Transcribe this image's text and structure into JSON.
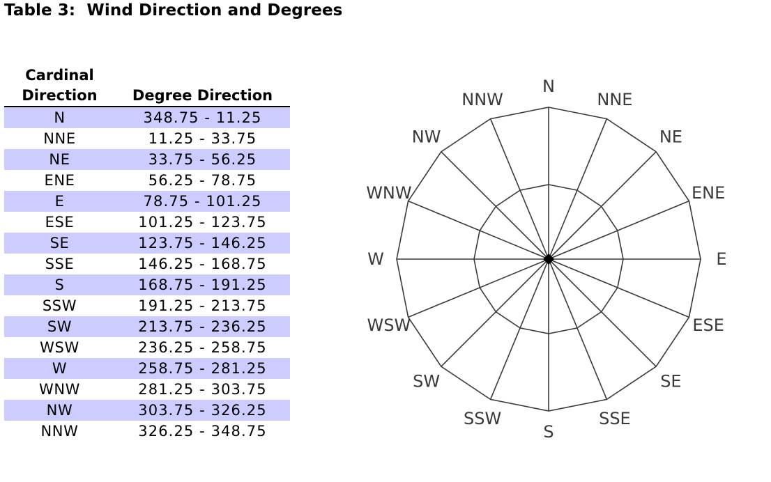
{
  "title": "Table 3:  Wind Direction and Degrees",
  "table": {
    "headers": [
      "Cardinal\nDirection",
      "Degree Direction"
    ],
    "rows": [
      [
        "N",
        "348.75 - 11.25"
      ],
      [
        "NNE",
        "11.25 - 33.75"
      ],
      [
        "NE",
        "33.75 - 56.25"
      ],
      [
        "ENE",
        "56.25 - 78.75"
      ],
      [
        "E",
        "78.75 - 101.25"
      ],
      [
        "ESE",
        "101.25 - 123.75"
      ],
      [
        "SE",
        "123.75 - 146.25"
      ],
      [
        "SSE",
        "146.25 - 168.75"
      ],
      [
        "S",
        "168.75 - 191.25"
      ],
      [
        "SSW",
        "191.25 - 213.75"
      ],
      [
        "SW",
        "213.75 - 236.25"
      ],
      [
        "WSW",
        "236.25 - 258.75"
      ],
      [
        "W",
        "258.75 - 281.25"
      ],
      [
        "WNW",
        "281.25 - 303.75"
      ],
      [
        "NW",
        "303.75 - 326.25"
      ],
      [
        "NNW",
        "326.25 - 348.75"
      ]
    ],
    "stripe_color": "#ccccff"
  },
  "compass_rose": {
    "labels": [
      "N",
      "NNE",
      "NE",
      "ENE",
      "E",
      "ESE",
      "SE",
      "SSE",
      "S",
      "SSW",
      "SW",
      "WSW",
      "W",
      "WNW",
      "NW",
      "NNW"
    ],
    "line_color": "#3a3a3a"
  }
}
